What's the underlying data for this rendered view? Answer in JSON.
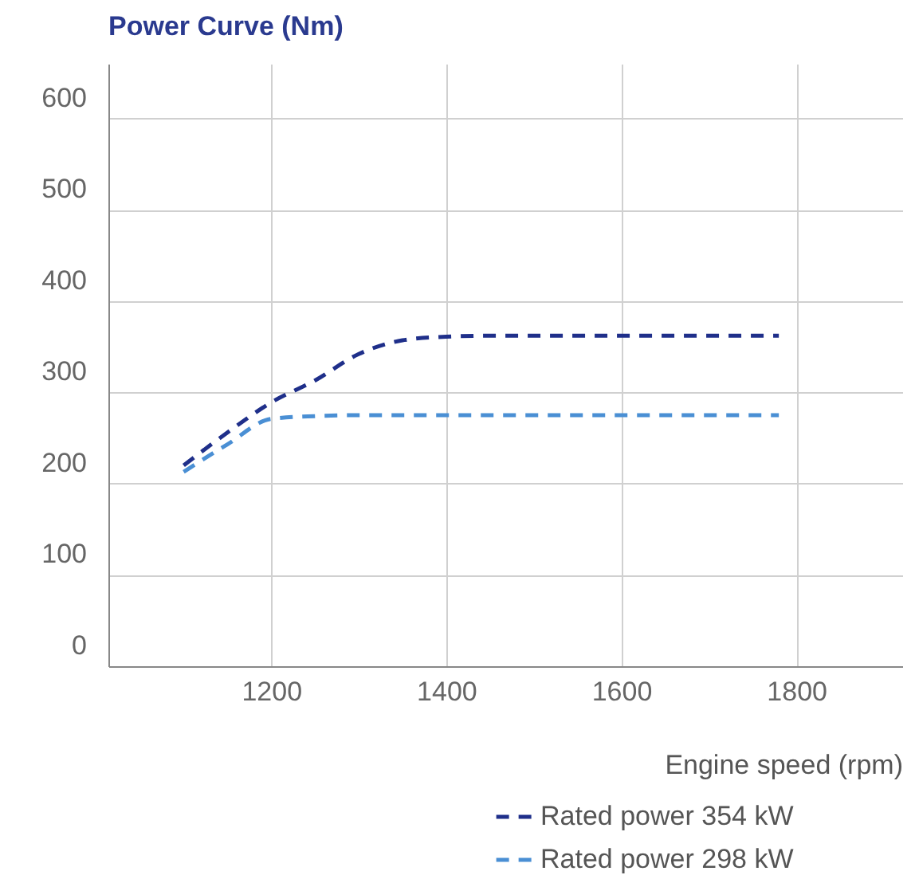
{
  "chart_data": {
    "type": "line",
    "title": "Power Curve (Nm)",
    "xlabel": "Engine speed (rpm)",
    "xlim": [
      1014,
      1921
    ],
    "xticks": [
      1200,
      1400,
      1600,
      1800
    ],
    "ylim": [
      0,
      660
    ],
    "yticks": [
      0,
      100,
      200,
      300,
      400,
      500,
      600
    ],
    "grid": true,
    "legend": "bottom right",
    "line_style": "dashed",
    "marker": "none",
    "series": [
      {
        "name": "Rated power 354 kW",
        "color": "#1f2f8a",
        "x": [
          1100,
          1150,
          1200,
          1250,
          1300,
          1350,
          1400,
          1450,
          1600,
          1780
        ],
        "values": [
          220,
          256,
          289,
          313,
          342,
          357,
          361,
          362,
          362,
          362
        ]
      },
      {
        "name": "Rated power 298 kW",
        "color": "#4a8fd4",
        "x": [
          1100,
          1150,
          1200,
          1250,
          1300,
          1400,
          1600,
          1780
        ],
        "values": [
          213,
          243,
          271,
          274,
          275,
          275,
          275,
          275
        ]
      }
    ]
  }
}
